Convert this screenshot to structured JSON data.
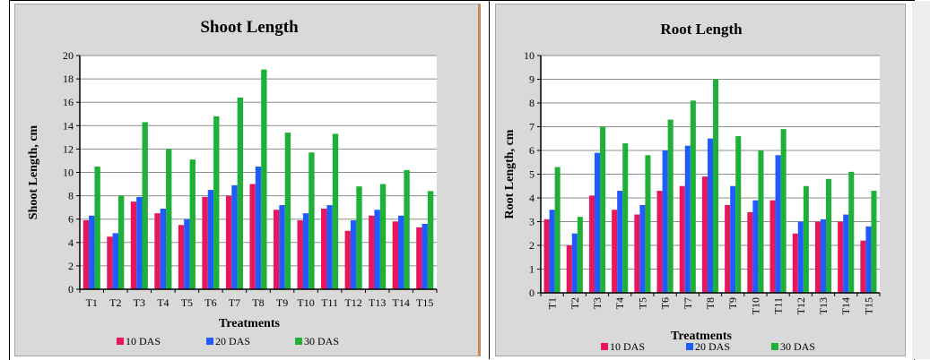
{
  "colors": {
    "series": [
      "#e8175d",
      "#1f5cff",
      "#1fb03a"
    ],
    "panel": "#d9d9d9",
    "plot": "#ffffff",
    "grid": "#8c8c8c"
  },
  "chart_data": [
    {
      "type": "bar",
      "title": "Shoot  Length",
      "xlabel": "Treatments",
      "ylabel": "Shoot Length, cm",
      "categories": [
        "T1",
        "T2",
        "T3",
        "T4",
        "T5",
        "T6",
        "T7",
        "T8",
        "T9",
        "T10",
        "T11",
        "T12",
        "T13",
        "T14",
        "T15"
      ],
      "ylim": [
        0,
        20
      ],
      "yticks": [
        "0",
        "2",
        "4",
        "6",
        "8",
        "10",
        "12",
        "14",
        "16",
        "18",
        "20"
      ],
      "grid": true,
      "legend_position": "bottom",
      "series": [
        {
          "name": "10 DAS",
          "values": [
            5.9,
            4.5,
            7.5,
            6.5,
            5.5,
            7.9,
            8.0,
            9.0,
            6.8,
            5.9,
            6.9,
            5.0,
            6.3,
            5.8,
            5.3
          ]
        },
        {
          "name": "20 DAS",
          "values": [
            6.3,
            4.8,
            7.9,
            6.9,
            6.0,
            8.5,
            8.9,
            10.5,
            7.2,
            6.5,
            7.2,
            5.9,
            6.8,
            6.3,
            5.6
          ]
        },
        {
          "name": "30 DAS",
          "values": [
            10.5,
            8.0,
            14.3,
            12.0,
            11.1,
            14.8,
            16.4,
            18.8,
            13.4,
            11.7,
            13.3,
            8.8,
            9.0,
            10.2,
            8.4
          ]
        }
      ]
    },
    {
      "type": "bar",
      "title": "Root Length",
      "xlabel": "Treatments",
      "ylabel": "Root Length, cm",
      "categories": [
        "T1",
        "T2",
        "T3",
        "T4",
        "T5",
        "T6",
        "T7",
        "T8",
        "T9",
        "T10",
        "T11",
        "T12",
        "T13",
        "T14",
        "T15"
      ],
      "ylim": [
        0,
        10
      ],
      "yticks": [
        "0",
        "1",
        "2",
        "3",
        "4",
        "5",
        "6",
        "7",
        "8",
        "9",
        "10"
      ],
      "grid": true,
      "legend_position": "bottom",
      "series": [
        {
          "name": "10 DAS",
          "values": [
            3.1,
            2.0,
            4.1,
            3.5,
            3.3,
            4.3,
            4.5,
            4.9,
            3.7,
            3.4,
            3.9,
            2.5,
            3.0,
            3.0,
            2.2
          ]
        },
        {
          "name": "20 DAS",
          "values": [
            3.5,
            2.5,
            5.9,
            4.3,
            3.7,
            6.0,
            6.2,
            6.5,
            4.5,
            3.9,
            5.8,
            3.0,
            3.1,
            3.3,
            2.8
          ]
        },
        {
          "name": "30 DAS",
          "values": [
            5.3,
            3.2,
            7.0,
            6.3,
            5.8,
            7.3,
            8.1,
            9.0,
            6.6,
            6.0,
            6.9,
            4.5,
            4.8,
            5.1,
            4.3
          ]
        }
      ]
    }
  ]
}
